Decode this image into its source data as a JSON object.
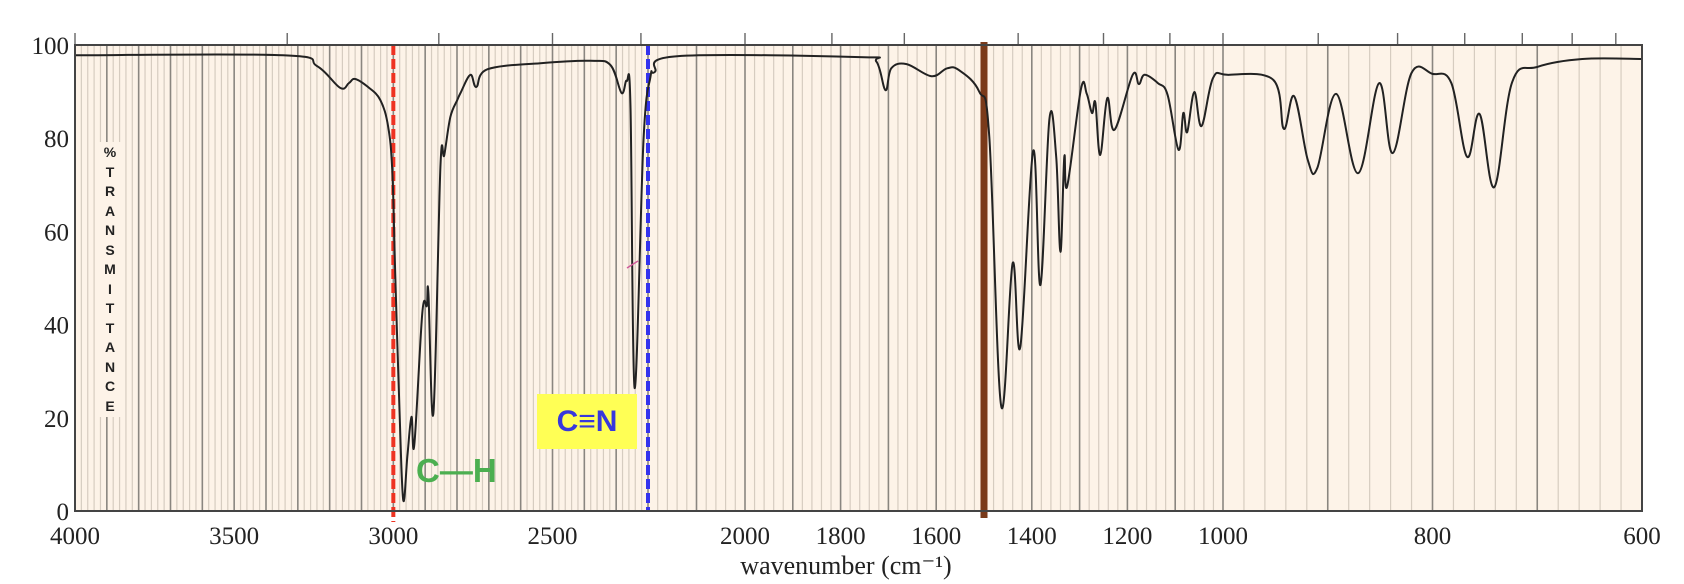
{
  "chart_data": {
    "type": "line",
    "title": "",
    "xlabel": "wavenumber (cm⁻¹)",
    "ylabel": "% TRANSMITTANCE",
    "ylabel_letters": [
      "%",
      "T",
      "R",
      "A",
      "N",
      "S",
      "M",
      "I",
      "T",
      "T",
      "A",
      "N",
      "C",
      "E"
    ],
    "xlim": [
      4000,
      600
    ],
    "ylim": [
      0,
      100
    ],
    "x_scale": "piecewise-linear (scale doubles below 2200 cm-1 and again changes below 1000 cm-1)",
    "x_ticks": [
      {
        "value": 4000,
        "label": "4000"
      },
      {
        "value": 3500,
        "label": "3500"
      },
      {
        "value": 3000,
        "label": "3000"
      },
      {
        "value": 2500,
        "label": "2500"
      },
      {
        "value": 2000,
        "label": "2000"
      },
      {
        "value": 1800,
        "label": "1800"
      },
      {
        "value": 1600,
        "label": "1600"
      },
      {
        "value": 1400,
        "label": "1400"
      },
      {
        "value": 1200,
        "label": "1200"
      },
      {
        "value": 1000,
        "label": "1000"
      },
      {
        "value": 800,
        "label": "800"
      },
      {
        "value": 600,
        "label": "600"
      }
    ],
    "y_ticks": [
      {
        "value": 100,
        "label": "100"
      },
      {
        "value": 80,
        "label": "80"
      },
      {
        "value": 60,
        "label": "60"
      },
      {
        "value": 40,
        "label": "40"
      },
      {
        "value": 20,
        "label": "20"
      },
      {
        "value": 0,
        "label": "0"
      }
    ],
    "grid": true,
    "colors": {
      "plot_bg": "#fdf3e8",
      "line": "#222222",
      "grid_minor": "#d6ccc0",
      "grid_major": "#8a8680"
    },
    "series": [
      {
        "x": [
          4000,
          3346,
          3240,
          3167,
          3140,
          3120,
          3080,
          3041,
          3016,
          3003,
          2994,
          2981,
          2969,
          2956,
          2943,
          2934,
          2909,
          2895,
          2890,
          2874,
          2852,
          2840,
          2821,
          2799,
          2789,
          2758,
          2739,
          2704,
          2538,
          2381,
          2318,
          2283,
          2267,
          2255,
          2242,
          2214,
          2195,
          2186,
          2140,
          1760,
          1725,
          1706,
          1694,
          1662,
          1610,
          1577,
          1552,
          1510,
          1489,
          1464,
          1440,
          1424,
          1397,
          1382,
          1363,
          1349,
          1340,
          1332,
          1326,
          1297,
          1285,
          1274,
          1267,
          1257,
          1242,
          1227,
          1189,
          1176,
          1164,
          1136,
          1116,
          1093,
          1083,
          1075,
          1060,
          1045,
          1021,
          996,
          952,
          942,
          932,
          919,
          910,
          892,
          871,
          851,
          838,
          820,
          800,
          782,
          767,
          755,
          741,
          724,
          700,
          657,
          600
        ],
        "y": [
          97.8,
          97.8,
          95.5,
          90.8,
          91.8,
          92.7,
          91,
          88.2,
          82.4,
          72.5,
          51,
          22.3,
          2.4,
          11.6,
          20.2,
          14.2,
          42.5,
          44,
          46.8,
          21,
          73.8,
          76.4,
          84.5,
          88.2,
          89.7,
          93.6,
          91,
          94.8,
          96.1,
          96.6,
          95.7,
          89.7,
          92.3,
          86.7,
          26.4,
          79.6,
          93.1,
          94.2,
          97.6,
          97.4,
          96.4,
          90.3,
          95,
          95.9,
          93.3,
          95,
          94.6,
          90,
          80.3,
          22.5,
          53.2,
          35.2,
          77.3,
          48.5,
          84.3,
          76,
          55.6,
          76,
          69.7,
          90.6,
          89.5,
          85.4,
          87.6,
          76.4,
          88.6,
          81.8,
          93.6,
          91.6,
          93.6,
          91.8,
          89.3,
          77.5,
          85.4,
          81.3,
          89.9,
          82.6,
          92.9,
          93.6,
          92.5,
          82,
          89,
          75.3,
          73.6,
          89.5,
          72.5,
          91.8,
          76.8,
          94,
          93.8,
          91.8,
          76,
          85.2,
          69.5,
          92,
          95.3,
          97,
          97
        ]
      }
    ],
    "markers": [
      {
        "value": 3000,
        "style": "dashed",
        "color": "#ee3322"
      },
      {
        "value": 2200,
        "style": "dashed",
        "color": "#3333ee"
      },
      {
        "value": 1500,
        "style": "solid",
        "color": "#7a3a1a"
      }
    ],
    "annotations": [
      {
        "text": "C—H",
        "color": "#4caf50"
      },
      {
        "text": "C≡N",
        "color": "#3838dd",
        "background": "#ffff55"
      }
    ]
  }
}
